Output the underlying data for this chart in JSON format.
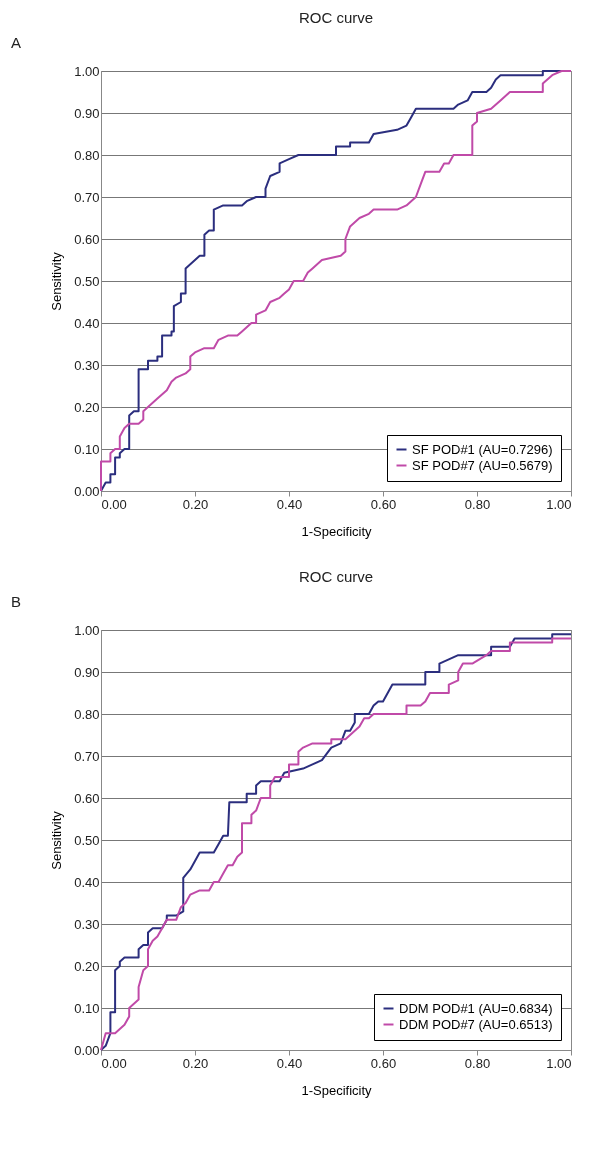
{
  "chart_data": [
    {
      "type": "line",
      "title": "ROC curve",
      "xlabel": "1-Specificity",
      "ylabel": "Sensitivity",
      "annotations": [
        "A"
      ],
      "xlim": [
        0,
        1
      ],
      "ylim": [
        0,
        1
      ],
      "xticks": [
        {
          "value": 0,
          "label": "0.00"
        },
        {
          "value": 0.2,
          "label": "0.20"
        },
        {
          "value": 0.4,
          "label": "0.40"
        },
        {
          "value": 0.6,
          "label": "0.60"
        },
        {
          "value": 0.8,
          "label": "0.80"
        },
        {
          "value": 1,
          "label": "1.00"
        }
      ],
      "yticks": [
        {
          "value": 0,
          "label": "0.00"
        },
        {
          "value": 0.1,
          "label": "0.10"
        },
        {
          "value": 0.2,
          "label": "0.20"
        },
        {
          "value": 0.3,
          "label": "0.30"
        },
        {
          "value": 0.4,
          "label": "0.40"
        },
        {
          "value": 0.5,
          "label": "0.50"
        },
        {
          "value": 0.6,
          "label": "0.60"
        },
        {
          "value": 0.7,
          "label": "0.70"
        },
        {
          "value": 0.8,
          "label": "0.80"
        },
        {
          "value": 0.9,
          "label": "0.90"
        },
        {
          "value": 1,
          "label": "1.00"
        }
      ],
      "grid": "y",
      "legend": "bottom right",
      "marker": "none",
      "line_style": "solid",
      "series": [
        {
          "name": "SF POD#1 (AU=0.7296)",
          "color": "#2b2e7e",
          "x": [
            0,
            0.01,
            0.02,
            0.02,
            0.03,
            0.03,
            0.04,
            0.04,
            0.05,
            0.06,
            0.06,
            0.07,
            0.08,
            0.08,
            0.1,
            0.1,
            0.12,
            0.12,
            0.13,
            0.13,
            0.15,
            0.15,
            0.155,
            0.155,
            0.17,
            0.17,
            0.18,
            0.18,
            0.19,
            0.2,
            0.21,
            0.22,
            0.22,
            0.23,
            0.24,
            0.24,
            0.26,
            0.3,
            0.31,
            0.33,
            0.35,
            0.35,
            0.36,
            0.38,
            0.38,
            0.4,
            0.42,
            0.5,
            0.5,
            0.53,
            0.53,
            0.57,
            0.58,
            0.63,
            0.65,
            0.66,
            0.67,
            0.75,
            0.76,
            0.78,
            0.79,
            0.82,
            0.83,
            0.84,
            0.85,
            0.94,
            0.94,
            1.0
          ],
          "values": [
            0,
            0.02,
            0.02,
            0.04,
            0.04,
            0.08,
            0.08,
            0.09,
            0.1,
            0.1,
            0.18,
            0.19,
            0.19,
            0.29,
            0.29,
            0.31,
            0.31,
            0.32,
            0.32,
            0.37,
            0.37,
            0.38,
            0.38,
            0.44,
            0.45,
            0.47,
            0.47,
            0.53,
            0.54,
            0.55,
            0.56,
            0.56,
            0.61,
            0.62,
            0.62,
            0.67,
            0.68,
            0.68,
            0.69,
            0.7,
            0.7,
            0.72,
            0.75,
            0.76,
            0.78,
            0.79,
            0.8,
            0.8,
            0.82,
            0.82,
            0.83,
            0.83,
            0.85,
            0.86,
            0.87,
            0.89,
            0.91,
            0.91,
            0.92,
            0.93,
            0.95,
            0.95,
            0.96,
            0.98,
            0.99,
            0.99,
            1.0,
            1.0
          ]
        },
        {
          "name": "SF POD#7 (AU=0.5679)",
          "color": "#c04aa8",
          "x": [
            0,
            0,
            0.02,
            0.02,
            0.03,
            0.04,
            0.04,
            0.05,
            0.06,
            0.08,
            0.09,
            0.09,
            0.1,
            0.11,
            0.12,
            0.14,
            0.15,
            0.16,
            0.18,
            0.19,
            0.19,
            0.2,
            0.22,
            0.24,
            0.25,
            0.27,
            0.29,
            0.3,
            0.32,
            0.33,
            0.33,
            0.35,
            0.36,
            0.38,
            0.39,
            0.4,
            0.41,
            0.43,
            0.44,
            0.45,
            0.47,
            0.51,
            0.52,
            0.52,
            0.53,
            0.55,
            0.57,
            0.58,
            0.63,
            0.65,
            0.66,
            0.67,
            0.68,
            0.69,
            0.72,
            0.73,
            0.74,
            0.75,
            0.79,
            0.79,
            0.8,
            0.8,
            0.83,
            0.85,
            0.87,
            0.94,
            0.94,
            0.96,
            0.98,
            1.0
          ],
          "values": [
            0,
            0.07,
            0.07,
            0.09,
            0.1,
            0.1,
            0.13,
            0.15,
            0.16,
            0.16,
            0.17,
            0.19,
            0.2,
            0.21,
            0.22,
            0.24,
            0.26,
            0.27,
            0.28,
            0.29,
            0.32,
            0.33,
            0.34,
            0.34,
            0.36,
            0.37,
            0.37,
            0.38,
            0.4,
            0.4,
            0.42,
            0.43,
            0.45,
            0.46,
            0.47,
            0.48,
            0.5,
            0.5,
            0.52,
            0.53,
            0.55,
            0.56,
            0.57,
            0.6,
            0.63,
            0.65,
            0.66,
            0.67,
            0.67,
            0.68,
            0.69,
            0.7,
            0.73,
            0.76,
            0.76,
            0.78,
            0.78,
            0.8,
            0.8,
            0.87,
            0.88,
            0.9,
            0.91,
            0.93,
            0.95,
            0.95,
            0.97,
            0.99,
            1.0,
            1.0
          ]
        }
      ]
    },
    {
      "type": "line",
      "title": "ROC curve",
      "xlabel": "1-Specificity",
      "ylabel": "Sensitivity",
      "annotations": [
        "B"
      ],
      "xlim": [
        0,
        1
      ],
      "ylim": [
        0,
        1
      ],
      "xticks": [
        {
          "value": 0,
          "label": "0.00"
        },
        {
          "value": 0.2,
          "label": "0.20"
        },
        {
          "value": 0.4,
          "label": "0.40"
        },
        {
          "value": 0.6,
          "label": "0.60"
        },
        {
          "value": 0.8,
          "label": "0.80"
        },
        {
          "value": 1,
          "label": "1.00"
        }
      ],
      "yticks": [
        {
          "value": 0,
          "label": "0.00"
        },
        {
          "value": 0.1,
          "label": "0.10"
        },
        {
          "value": 0.2,
          "label": "0.20"
        },
        {
          "value": 0.3,
          "label": "0.30"
        },
        {
          "value": 0.4,
          "label": "0.40"
        },
        {
          "value": 0.5,
          "label": "0.50"
        },
        {
          "value": 0.6,
          "label": "0.60"
        },
        {
          "value": 0.7,
          "label": "0.70"
        },
        {
          "value": 0.8,
          "label": "0.80"
        },
        {
          "value": 0.9,
          "label": "0.90"
        },
        {
          "value": 1,
          "label": "1.00"
        }
      ],
      "grid": "y",
      "legend": "bottom right",
      "marker": "none",
      "line_style": "solid",
      "series": [
        {
          "name": "DDM POD#1 (AU=0.6834)",
          "color": "#2b2e7e",
          "x": [
            0,
            0.01,
            0.02,
            0.02,
            0.03,
            0.03,
            0.04,
            0.04,
            0.05,
            0.08,
            0.08,
            0.09,
            0.1,
            0.1,
            0.11,
            0.13,
            0.14,
            0.14,
            0.16,
            0.175,
            0.175,
            0.19,
            0.2,
            0.21,
            0.24,
            0.25,
            0.26,
            0.27,
            0.273,
            0.31,
            0.31,
            0.33,
            0.33,
            0.34,
            0.38,
            0.39,
            0.43,
            0.45,
            0.47,
            0.49,
            0.51,
            0.52,
            0.53,
            0.54,
            0.54,
            0.57,
            0.58,
            0.59,
            0.6,
            0.61,
            0.62,
            0.69,
            0.69,
            0.72,
            0.72,
            0.74,
            0.76,
            0.83,
            0.83,
            0.87,
            0.88,
            0.96,
            0.96,
            1.0
          ],
          "values": [
            0,
            0.01,
            0.04,
            0.09,
            0.09,
            0.19,
            0.2,
            0.21,
            0.22,
            0.22,
            0.24,
            0.25,
            0.25,
            0.28,
            0.29,
            0.29,
            0.31,
            0.32,
            0.32,
            0.33,
            0.41,
            0.43,
            0.45,
            0.47,
            0.47,
            0.49,
            0.51,
            0.51,
            0.59,
            0.59,
            0.61,
            0.61,
            0.63,
            0.64,
            0.64,
            0.66,
            0.67,
            0.68,
            0.69,
            0.72,
            0.73,
            0.76,
            0.76,
            0.78,
            0.8,
            0.8,
            0.82,
            0.83,
            0.83,
            0.85,
            0.87,
            0.87,
            0.9,
            0.9,
            0.92,
            0.93,
            0.94,
            0.94,
            0.96,
            0.96,
            0.98,
            0.98,
            0.99,
            0.99
          ]
        },
        {
          "name": "DDM POD#7 (AU=0.6513)",
          "color": "#c04aa8",
          "x": [
            0,
            0.01,
            0.03,
            0.04,
            0.05,
            0.06,
            0.06,
            0.07,
            0.08,
            0.08,
            0.09,
            0.1,
            0.1,
            0.11,
            0.12,
            0.13,
            0.14,
            0.16,
            0.17,
            0.18,
            0.19,
            0.21,
            0.23,
            0.24,
            0.25,
            0.26,
            0.27,
            0.28,
            0.29,
            0.3,
            0.3,
            0.32,
            0.32,
            0.33,
            0.34,
            0.36,
            0.36,
            0.37,
            0.4,
            0.4,
            0.42,
            0.42,
            0.43,
            0.45,
            0.49,
            0.49,
            0.52,
            0.53,
            0.55,
            0.56,
            0.57,
            0.58,
            0.65,
            0.65,
            0.68,
            0.69,
            0.7,
            0.74,
            0.74,
            0.76,
            0.76,
            0.77,
            0.79,
            0.82,
            0.83,
            0.87,
            0.87,
            0.96,
            0.96,
            1.0
          ],
          "values": [
            0,
            0.04,
            0.04,
            0.05,
            0.06,
            0.08,
            0.1,
            0.11,
            0.12,
            0.15,
            0.19,
            0.2,
            0.24,
            0.26,
            0.27,
            0.29,
            0.31,
            0.31,
            0.34,
            0.35,
            0.37,
            0.38,
            0.38,
            0.4,
            0.4,
            0.42,
            0.44,
            0.44,
            0.46,
            0.47,
            0.54,
            0.54,
            0.56,
            0.57,
            0.6,
            0.6,
            0.63,
            0.65,
            0.65,
            0.68,
            0.68,
            0.71,
            0.72,
            0.73,
            0.73,
            0.74,
            0.74,
            0.75,
            0.77,
            0.79,
            0.79,
            0.8,
            0.8,
            0.82,
            0.82,
            0.83,
            0.85,
            0.85,
            0.87,
            0.88,
            0.9,
            0.92,
            0.92,
            0.94,
            0.95,
            0.95,
            0.97,
            0.97,
            0.98,
            0.98
          ]
        }
      ]
    }
  ]
}
